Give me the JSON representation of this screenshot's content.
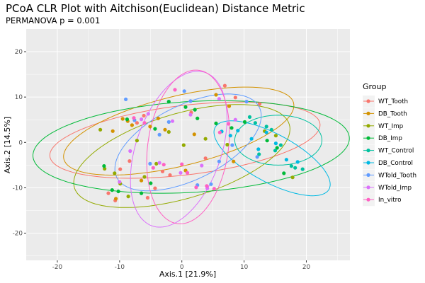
{
  "chart_data": {
    "type": "scatter",
    "title": "PCoA CLR Plot with Aitchison(Euclidean) Distance Metric",
    "subtitle": "PERMANOVA p = 0.001",
    "xlabel": "Axis.1   [21.9%]",
    "ylabel": "Axis.2   [14.5%]",
    "xlim": [
      -25,
      27
    ],
    "ylim": [
      -26,
      25
    ],
    "xticks": [
      -20,
      -10,
      0,
      10,
      20
    ],
    "yticks": [
      -20,
      -10,
      0,
      10,
      20
    ],
    "grid": true,
    "legend": {
      "title": "Group",
      "position": "right"
    },
    "ellipses": true,
    "series": [
      {
        "name": "WT_Tooth",
        "color": "#F8766D",
        "points": [
          [
            -11.8,
            -11.2
          ],
          [
            -10.7,
            -12.8
          ],
          [
            -9.9,
            -5.9
          ],
          [
            -8.4,
            -4.1
          ],
          [
            -7.2,
            4.3
          ],
          [
            -6.1,
            5.9
          ],
          [
            -5.5,
            -12.2
          ],
          [
            -4.3,
            -10.1
          ],
          [
            -3.1,
            -6.4
          ],
          [
            -1.9,
            -7.2
          ],
          [
            1.5,
            6.6
          ],
          [
            3.8,
            -3.5
          ],
          [
            6.9,
            12.5
          ],
          [
            8.6,
            9.9
          ],
          [
            12.5,
            8.5
          ]
        ]
      },
      {
        "name": "DB_Tooth",
        "color": "#D39200",
        "points": [
          [
            -11.1,
            2.5
          ],
          [
            -10.6,
            -12.4
          ],
          [
            -9.5,
            5.2
          ],
          [
            -8.7,
            4.7
          ],
          [
            -8.0,
            3.8
          ],
          [
            -6.5,
            -8.4
          ],
          [
            -5.1,
            3.5
          ],
          [
            -3.8,
            5.3
          ],
          [
            -2.7,
            2.8
          ],
          [
            0.6,
            -6.2
          ],
          [
            2.0,
            1.8
          ],
          [
            5.5,
            10.5
          ],
          [
            7.6,
            8.0
          ],
          [
            8.3,
            -4.2
          ]
        ]
      },
      {
        "name": "WT_Imp",
        "color": "#93AA00",
        "points": [
          [
            -13.1,
            2.8
          ],
          [
            -12.4,
            -5.8
          ],
          [
            -10.8,
            -6.8
          ],
          [
            -9.9,
            -9.1
          ],
          [
            -8.6,
            -11.9
          ],
          [
            -7.2,
            0.4
          ],
          [
            -6.0,
            -7.6
          ],
          [
            -4.1,
            -4.7
          ],
          [
            -2.1,
            2.3
          ],
          [
            0.3,
            -0.6
          ],
          [
            3.8,
            0.8
          ],
          [
            7.3,
            -0.5
          ],
          [
            13.3,
            2.5
          ],
          [
            15.1,
            1.5
          ],
          [
            17.8,
            -7.7
          ]
        ]
      },
      {
        "name": "DB_Imp",
        "color": "#00BA38",
        "points": [
          [
            -12.5,
            -5.2
          ],
          [
            -11.2,
            -10.5
          ],
          [
            -10.2,
            -10.8
          ],
          [
            -8.8,
            5.1
          ],
          [
            -6.5,
            -11.2
          ],
          [
            -5.0,
            -9.0
          ],
          [
            -4.3,
            3.0
          ],
          [
            -2.1,
            9.0
          ],
          [
            0.6,
            7.8
          ],
          [
            2.1,
            7.2
          ],
          [
            2.5,
            5.3
          ],
          [
            5.5,
            4.2
          ],
          [
            8.0,
            3.2
          ],
          [
            10.1,
            4.5
          ],
          [
            13.7,
            0.4
          ],
          [
            15.3,
            -1.2
          ],
          [
            16.4,
            -6.8
          ]
        ]
      },
      {
        "name": "WT_Control",
        "color": "#00C19F",
        "points": [
          [
            10.9,
            5.6
          ],
          [
            11.8,
            4.3
          ],
          [
            12.4,
            -2.6
          ],
          [
            13.6,
            3.5
          ],
          [
            14.4,
            2.8
          ],
          [
            15.0,
            -1.8
          ],
          [
            15.9,
            -0.6
          ],
          [
            17.6,
            -5.2
          ],
          [
            18.2,
            -5.6
          ],
          [
            19.4,
            -5.9
          ]
        ]
      },
      {
        "name": "DB_Control",
        "color": "#00B9E3",
        "points": [
          [
            6.4,
            2.4
          ],
          [
            7.8,
            1.5
          ],
          [
            9.0,
            2.6
          ],
          [
            11.2,
            0.8
          ],
          [
            12.3,
            -1.5
          ],
          [
            13.6,
            2.2
          ],
          [
            15.1,
            -0.2
          ],
          [
            16.8,
            -3.8
          ],
          [
            18.6,
            -4.3
          ]
        ]
      },
      {
        "name": "WTold_Tooth",
        "color": "#619CFF",
        "points": [
          [
            -9.0,
            9.5
          ],
          [
            -7.6,
            4.9
          ],
          [
            -5.1,
            -4.7
          ],
          [
            -3.6,
            1.7
          ],
          [
            -2.1,
            4.5
          ],
          [
            0.4,
            11.3
          ],
          [
            1.4,
            9.1
          ],
          [
            2.5,
            -9.4
          ],
          [
            4.7,
            -9.2
          ],
          [
            6.0,
            -4.2
          ],
          [
            8.1,
            -0.6
          ],
          [
            10.4,
            9.0
          ],
          [
            12.1,
            -3.2
          ]
        ]
      },
      {
        "name": "WTold_Imp",
        "color": "#DB72FB",
        "points": [
          [
            -10.0,
            -8.7
          ],
          [
            -8.3,
            -1.9
          ],
          [
            -6.5,
            5.1
          ],
          [
            -5.4,
            6.3
          ],
          [
            -3.6,
            -4.5
          ],
          [
            -1.5,
            4.7
          ],
          [
            -0.2,
            -6.7
          ],
          [
            1.4,
            6.1
          ],
          [
            3.2,
            -5.1
          ],
          [
            4.1,
            -10.1
          ],
          [
            6.0,
            9.6
          ],
          [
            8.6,
            5.0
          ]
        ]
      },
      {
        "name": "In_vitro",
        "color": "#FF61C3",
        "points": [
          [
            -7.7,
            5.4
          ],
          [
            -6.0,
            4.3
          ],
          [
            -4.6,
            -5.6
          ],
          [
            -2.9,
            -4.9
          ],
          [
            -1.1,
            11.6
          ],
          [
            0.0,
            -4.8
          ],
          [
            0.9,
            -6.7
          ],
          [
            2.3,
            -9.9
          ],
          [
            4.0,
            -9.6
          ],
          [
            5.2,
            -10.2
          ],
          [
            6.1,
            2.2
          ],
          [
            7.5,
            4.1
          ]
        ]
      }
    ],
    "ellipse_params": [
      {
        "series": "WT_Tooth",
        "cx": 0.5,
        "cy": 0.5,
        "rx": 22.0,
        "ry": 7.6,
        "angle": 10
      },
      {
        "series": "DB_Tooth",
        "cx": -0.5,
        "cy": 2.5,
        "rx": 19.5,
        "ry": 7.5,
        "angle": 20
      },
      {
        "series": "WT_Imp",
        "cx": 0.0,
        "cy": -3.0,
        "rx": 18.7,
        "ry": 9.0,
        "angle": 25
      },
      {
        "series": "DB_Imp",
        "cx": 1.5,
        "cy": -1.0,
        "rx": 25.5,
        "ry": 10.0,
        "angle": 5
      },
      {
        "series": "WT_Control",
        "cx": 15.5,
        "cy": 0.5,
        "rx": 7.0,
        "ry": 5.5,
        "angle": 0
      },
      {
        "series": "DB_Control",
        "cx": 14.5,
        "cy": -3.5,
        "rx": 11.5,
        "ry": 4.8,
        "angle": -40
      },
      {
        "series": "WTold_Tooth",
        "cx": 1.0,
        "cy": 0.0,
        "rx": 14.0,
        "ry": 7.5,
        "angle": 40
      },
      {
        "series": "WTold_Imp",
        "cx": -0.5,
        "cy": -1.5,
        "rx": 17.5,
        "ry": 7.0,
        "angle": 78
      },
      {
        "series": "In_vitro",
        "cx": 1.0,
        "cy": -1.0,
        "rx": 17.0,
        "ry": 6.5,
        "angle": 85
      }
    ]
  }
}
